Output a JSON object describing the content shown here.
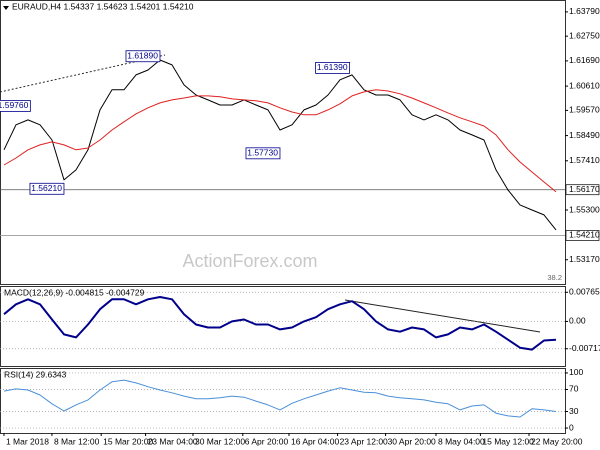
{
  "chart_data": [
    {
      "type": "line",
      "title": "EURAUD,H4 1.54337 1.54623 1.54201 1.54210",
      "watermark": "ActionForex.com",
      "fib_label": "38.2",
      "xlim": [
        -0.33,
        46.75
      ],
      "ylim": [
        1.5213,
        1.643
      ],
      "yticks": [
        {
          "value": 1.6379,
          "label": "1.63790"
        },
        {
          "value": 1.6275,
          "label": "1.62750"
        },
        {
          "value": 1.6169,
          "label": "1.61690"
        },
        {
          "value": 1.6061,
          "label": "1.60610"
        },
        {
          "value": 1.5957,
          "label": "1.59570"
        },
        {
          "value": 1.5849,
          "label": "1.58490"
        },
        {
          "value": 1.5741,
          "label": "1.57410"
        },
        {
          "value": 1.553,
          "label": "1.55300"
        },
        {
          "value": 1.5317,
          "label": "1.53170"
        }
      ],
      "grid": false,
      "series": [
        {
          "color": "#000000",
          "width": 1,
          "values": [
            1.5788,
            1.5895,
            1.5916,
            1.5895,
            1.583,
            1.5659,
            1.5702,
            1.5788,
            1.5959,
            1.6045,
            1.6045,
            1.6109,
            1.613,
            1.6173,
            1.6152,
            1.6066,
            1.6023,
            1.6002,
            1.598,
            1.598,
            1.6002,
            1.598,
            1.5959,
            1.5873,
            1.5895,
            1.5959,
            1.598,
            1.6023,
            1.6088,
            1.6109,
            1.6045,
            1.6023,
            1.6023,
            1.6002,
            1.5938,
            1.5916,
            1.5938,
            1.5916,
            1.5873,
            1.5852,
            1.583,
            1.5702,
            1.5616,
            1.5552,
            1.553,
            1.5509,
            1.5445
          ]
        },
        {
          "color": "#e02020",
          "width": 1,
          "values": [
            1.5723,
            1.5753,
            1.5788,
            1.5809,
            1.5822,
            1.5809,
            1.5788,
            1.5796,
            1.583,
            1.5873,
            1.5908,
            1.5942,
            1.5968,
            1.5989,
            1.6002,
            1.601,
            1.6019,
            1.6019,
            1.6015,
            1.6006,
            1.6002,
            1.5998,
            1.5989,
            1.5968,
            1.595,
            1.5938,
            1.5938,
            1.5959,
            1.5985,
            1.6019,
            1.6036,
            1.6045,
            1.604,
            1.6028,
            1.601,
            1.5989,
            1.5968,
            1.5946,
            1.5925,
            1.5908,
            1.589,
            1.5852,
            1.5788,
            1.5736,
            1.5693,
            1.565,
            1.5608
          ]
        }
      ],
      "levels": [
        {
          "value": 1.5617,
          "label": "1.56170"
        },
        {
          "value": 1.5421,
          "label": "1.54210"
        }
      ],
      "annotations": [
        {
          "label": "1.59760",
          "value": 1.5976,
          "x": 2.2
        },
        {
          "label": "1.56210",
          "value": 1.5621,
          "x": 5
        },
        {
          "label": "1.61890",
          "value": 1.6189,
          "x": 13
        },
        {
          "label": "1.57730",
          "value": 1.5773,
          "x": 23
        },
        {
          "label": "1.61390",
          "value": 1.6139,
          "x": 28.8
        }
      ]
    },
    {
      "type": "line",
      "title": "MACD(12,26,9) -0.004815 -0.004729",
      "xlim": [
        -0.33,
        46.75
      ],
      "ylim": [
        -0.0117,
        0.0093
      ],
      "yticks": [
        0.00765,
        {
          "value": 0,
          "label": "0.00"
        },
        -0.00717
      ],
      "grid": true,
      "series": [
        {
          "color": "#00008b",
          "width": 2,
          "values": [
            0.0019,
            0.0045,
            0.0058,
            0.0045,
            0.0005,
            -0.0034,
            -0.0042,
            -0.0008,
            0.0032,
            0.0058,
            0.0058,
            0.0045,
            0.0058,
            0.0064,
            0.0058,
            0.0019,
            -0.0008,
            -0.0016,
            -0.0016,
            0,
            0.0005,
            -0.0008,
            -0.0008,
            -0.0021,
            -0.0016,
            0,
            0.0011,
            0.0032,
            0.0045,
            0.0053,
            0.0032,
            0,
            -0.0021,
            -0.0027,
            -0.0016,
            -0.0021,
            -0.0042,
            -0.0034,
            -0.0016,
            -0.0021,
            -0.0008,
            -0.0027,
            -0.0048,
            -0.0069,
            -0.0074,
            -0.005,
            -0.0048
          ]
        }
      ]
    },
    {
      "type": "line",
      "title": "RSI(14) 29.6343",
      "xlim": [
        -0.33,
        46.75
      ],
      "ylim": [
        -9,
        109
      ],
      "yticks": [
        100,
        70,
        30,
        0
      ],
      "grid": true,
      "xticks": [
        {
          "value": 0,
          "label": "1 Mar 2018"
        },
        {
          "value": 4,
          "label": "8 Mar 12:00"
        },
        {
          "value": 8.1,
          "label": "15 Mar 20:00"
        },
        {
          "value": 11.8,
          "label": "23 Mar 04:00"
        },
        {
          "value": 15.75,
          "label": "30 Mar 12:00"
        },
        {
          "value": 19.9,
          "label": "6 Apr 20:00"
        },
        {
          "value": 23.75,
          "label": "16 Apr 04:00"
        },
        {
          "value": 27.8,
          "label": "23 Apr 12:00"
        },
        {
          "value": 31.8,
          "label": "30 Apr 20:00"
        },
        {
          "value": 36,
          "label": "8 May 04:00"
        },
        {
          "value": 39.7,
          "label": "15 May 12:00"
        },
        {
          "value": 43.75,
          "label": "22 May 20:00"
        }
      ],
      "series": [
        {
          "color": "#4a90d9",
          "width": 1,
          "values": [
            67,
            71,
            69,
            60,
            44,
            31,
            42,
            51,
            69,
            84,
            87,
            82,
            75,
            69,
            64,
            58,
            53,
            53,
            55,
            58,
            56,
            49,
            42,
            33,
            45,
            53,
            60,
            67,
            73,
            69,
            65,
            64,
            58,
            55,
            53,
            51,
            47,
            44,
            33,
            40,
            42,
            27,
            22,
            20,
            35,
            33,
            30
          ]
        }
      ]
    }
  ]
}
